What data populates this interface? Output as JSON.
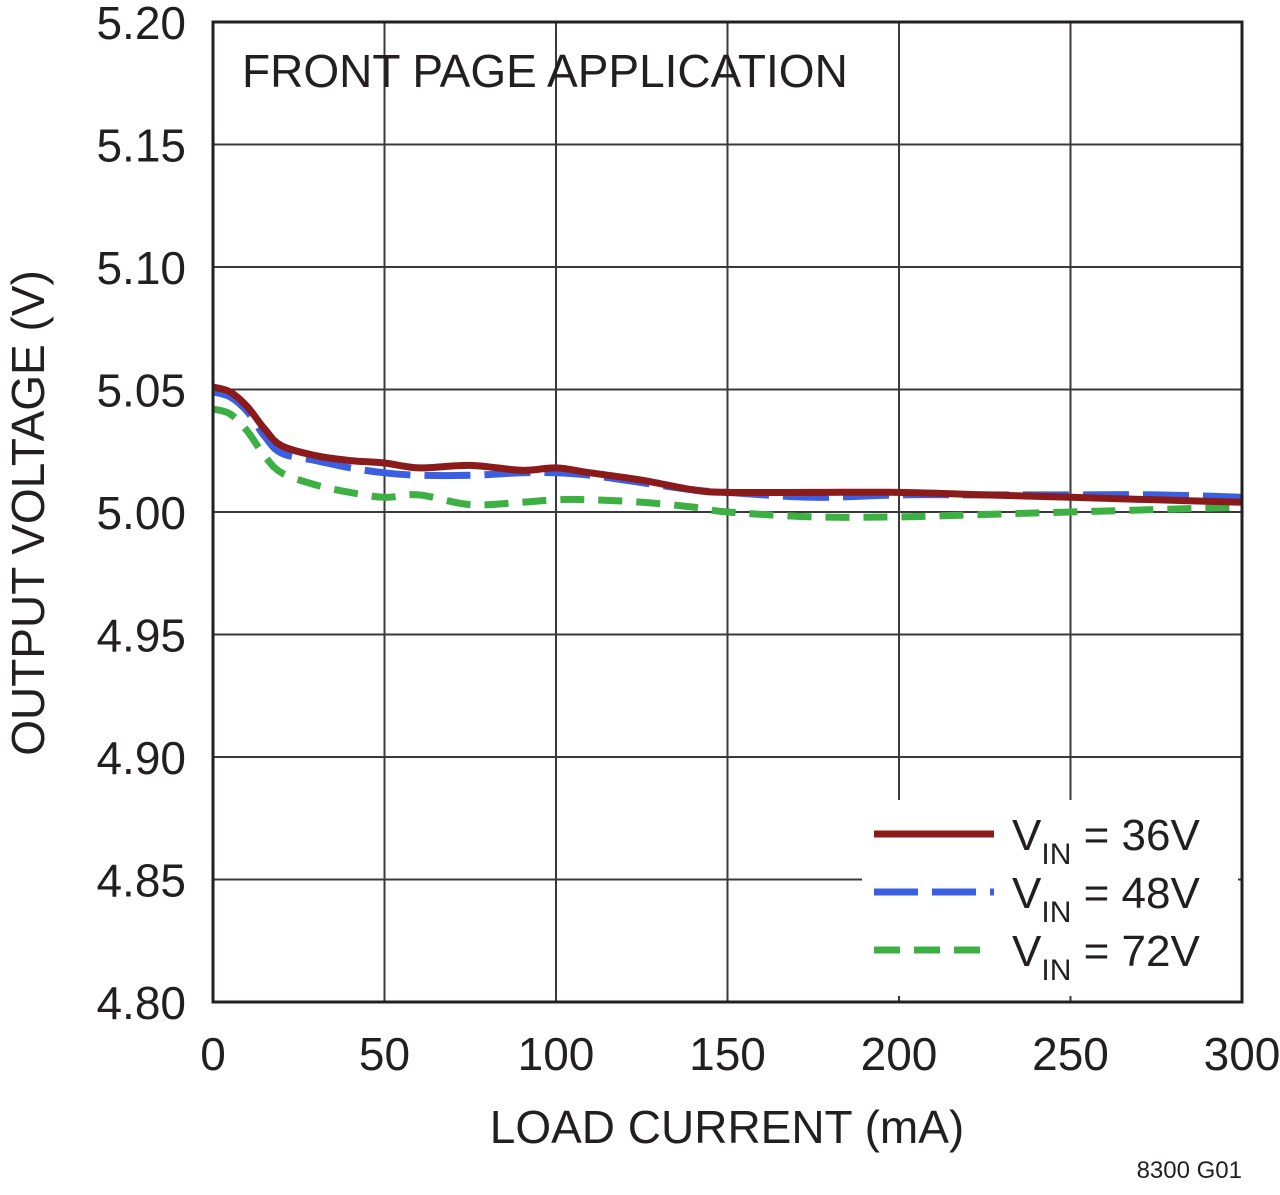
{
  "chart_data": {
    "type": "line",
    "annotation": "FRONT PAGE APPLICATION",
    "xlabel": "LOAD CURRENT (mA)",
    "ylabel": "OUTPUT VOLTAGE (V)",
    "xlim": [
      0,
      300
    ],
    "ylim": [
      4.8,
      5.2
    ],
    "x_ticks": [
      "0",
      "50",
      "100",
      "150",
      "200",
      "250",
      "300"
    ],
    "y_ticks": [
      "5.20",
      "5.15",
      "5.10",
      "5.05",
      "5.00",
      "4.95",
      "4.90",
      "4.85",
      "4.80"
    ],
    "grid": true,
    "legend_position": "bottom-right",
    "figure_id": "8300 G01",
    "series": [
      {
        "name": "V_IN = 36V",
        "legend": {
          "main": "V",
          "sub": "IN",
          "rest": " = 36V"
        },
        "color": "#8b1a1a",
        "style": "solid",
        "x": [
          0,
          5,
          10,
          15,
          20,
          30,
          40,
          50,
          60,
          75,
          90,
          100,
          110,
          125,
          140,
          150,
          175,
          200,
          225,
          250,
          275,
          300
        ],
        "y": [
          5.051,
          5.049,
          5.043,
          5.034,
          5.027,
          5.023,
          5.021,
          5.02,
          5.018,
          5.019,
          5.017,
          5.018,
          5.016,
          5.013,
          5.009,
          5.008,
          5.008,
          5.008,
          5.007,
          5.006,
          5.005,
          5.004
        ]
      },
      {
        "name": "V_IN = 48V",
        "legend": {
          "main": "V",
          "sub": "IN",
          "rest": " = 48V"
        },
        "color": "#3a5fe0",
        "style": "long-dash",
        "x": [
          0,
          5,
          10,
          15,
          20,
          30,
          40,
          50,
          60,
          75,
          90,
          100,
          110,
          125,
          140,
          150,
          175,
          200,
          225,
          250,
          275,
          300
        ],
        "y": [
          5.049,
          5.047,
          5.041,
          5.031,
          5.024,
          5.021,
          5.018,
          5.016,
          5.015,
          5.015,
          5.016,
          5.016,
          5.015,
          5.012,
          5.009,
          5.008,
          5.006,
          5.007,
          5.007,
          5.007,
          5.007,
          5.006
        ]
      },
      {
        "name": "V_IN = 72V",
        "legend": {
          "main": "V",
          "sub": "IN",
          "rest": " = 72V"
        },
        "color": "#3cb043",
        "style": "short-dash",
        "x": [
          0,
          5,
          10,
          15,
          20,
          30,
          40,
          50,
          60,
          75,
          90,
          100,
          110,
          125,
          140,
          150,
          175,
          200,
          225,
          250,
          275,
          300
        ],
        "y": [
          5.042,
          5.04,
          5.033,
          5.023,
          5.016,
          5.011,
          5.008,
          5.006,
          5.007,
          5.003,
          5.004,
          5.005,
          5.005,
          5.004,
          5.002,
          5.0,
          4.998,
          4.998,
          4.999,
          5.0,
          5.001,
          5.002
        ]
      }
    ]
  }
}
